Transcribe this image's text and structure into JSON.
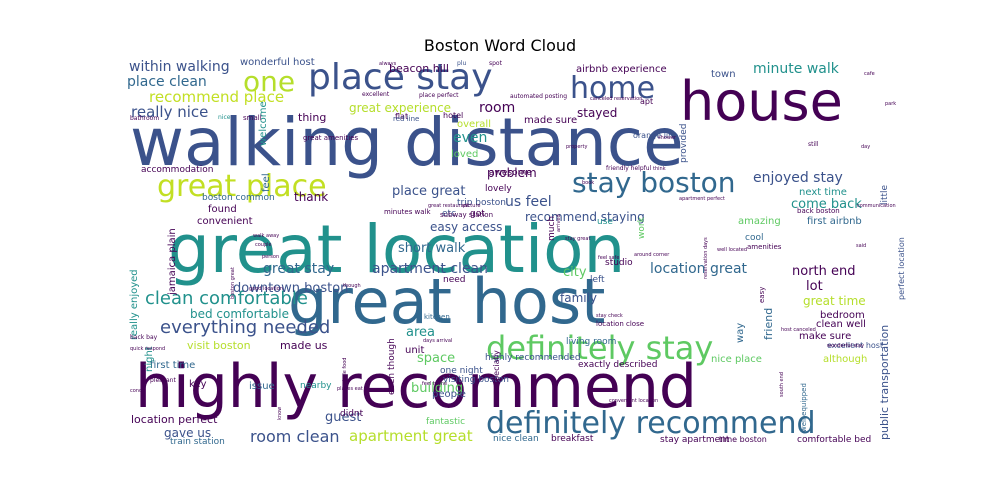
{
  "title": "Boston Word Cloud",
  "palette": "viridis",
  "words": [
    {
      "text": "walking distance",
      "weight": 100,
      "color": "#3b528b"
    },
    {
      "text": "great location",
      "weight": 97,
      "color": "#21918c"
    },
    {
      "text": "great host",
      "weight": 92,
      "color": "#31688e"
    },
    {
      "text": "highly recommend",
      "weight": 90,
      "color": "#440154"
    },
    {
      "text": "house",
      "weight": 70,
      "color": "#440154"
    },
    {
      "text": "place stay",
      "weight": 52,
      "color": "#3b528b"
    },
    {
      "text": "definitely stay",
      "weight": 46,
      "color": "#5ec962"
    },
    {
      "text": "great place",
      "weight": 42,
      "color": "#c2df23"
    },
    {
      "text": "definitely recommend",
      "weight": 40,
      "color": "#31688e"
    },
    {
      "text": "home",
      "weight": 38,
      "color": "#3b528b"
    },
    {
      "text": "one",
      "weight": 34,
      "color": "#b5de2b"
    },
    {
      "text": "stay boston",
      "weight": 36,
      "color": "#31688e"
    },
    {
      "text": "everything needed",
      "weight": 24,
      "color": "#3b528b"
    },
    {
      "text": "clean comfortable",
      "weight": 22,
      "color": "#21918c"
    },
    {
      "text": "recommend place",
      "weight": 18,
      "color": "#c2df23"
    },
    {
      "text": "really nice",
      "weight": 17,
      "color": "#3b528b"
    },
    {
      "text": "within walking",
      "weight": 16,
      "color": "#3b528b"
    },
    {
      "text": "place clean",
      "weight": 16,
      "color": "#31688e"
    },
    {
      "text": "minute walk",
      "weight": 16,
      "color": "#21918c"
    },
    {
      "text": "room clean",
      "weight": 18,
      "color": "#3b528b"
    },
    {
      "text": "apartment great",
      "weight": 16,
      "color": "#b5de2b"
    },
    {
      "text": "great stay",
      "weight": 16,
      "color": "#31688e"
    },
    {
      "text": "apartment clean",
      "weight": 16,
      "color": "#3b528b"
    },
    {
      "text": "location great",
      "weight": 16,
      "color": "#31688e"
    },
    {
      "text": "enjoyed stay",
      "weight": 15,
      "color": "#3b528b"
    },
    {
      "text": "downtown boston",
      "weight": 15,
      "color": "#3b528b"
    },
    {
      "text": "short walk",
      "weight": 15,
      "color": "#31688e"
    },
    {
      "text": "us feel",
      "weight": 16,
      "color": "#3b528b"
    },
    {
      "text": "even",
      "weight": 16,
      "color": "#21918c"
    },
    {
      "text": "room",
      "weight": 16,
      "color": "#440154"
    },
    {
      "text": "great experience",
      "weight": 13,
      "color": "#b5de2b"
    },
    {
      "text": "recommend staying",
      "weight": 13,
      "color": "#3b528b"
    },
    {
      "text": "place great",
      "weight": 14,
      "color": "#3b528b"
    },
    {
      "text": "come back",
      "weight": 14,
      "color": "#21918c"
    },
    {
      "text": "north end",
      "weight": 14,
      "color": "#440154"
    },
    {
      "text": "great time",
      "weight": 13,
      "color": "#b5de2b"
    },
    {
      "text": "lot",
      "weight": 14,
      "color": "#440154"
    },
    {
      "text": "bed comfortable",
      "weight": 13,
      "color": "#21918c"
    },
    {
      "text": "visit boston",
      "weight": 12,
      "color": "#b5de2b"
    },
    {
      "text": "made us",
      "weight": 12,
      "color": "#440154"
    },
    {
      "text": "area",
      "weight": 14,
      "color": "#21918c"
    },
    {
      "text": "space",
      "weight": 14,
      "color": "#5ec962"
    },
    {
      "text": "guest",
      "weight": 14,
      "color": "#3b528b"
    },
    {
      "text": "building",
      "weight": 14,
      "color": "#5ec962"
    },
    {
      "text": "gave us",
      "weight": 13,
      "color": "#3b528b"
    },
    {
      "text": "location perfect",
      "weight": 11,
      "color": "#440154"
    },
    {
      "text": "first time",
      "weight": 10,
      "color": "#31688e"
    },
    {
      "text": "problem",
      "weight": 12,
      "color": "#440154"
    },
    {
      "text": "stayed",
      "weight": 12,
      "color": "#440154"
    },
    {
      "text": "city",
      "weight": 12,
      "color": "#5ec962"
    },
    {
      "text": "family",
      "weight": 11,
      "color": "#3b528b"
    },
    {
      "text": "easy access",
      "weight": 12,
      "color": "#3b528b"
    },
    {
      "text": "thank",
      "weight": 12,
      "color": "#440154"
    },
    {
      "text": "thing",
      "weight": 11,
      "color": "#440154"
    },
    {
      "text": "beacon hill",
      "weight": 10,
      "color": "#440154"
    },
    {
      "text": "airbnb experience",
      "weight": 9,
      "color": "#440154"
    },
    {
      "text": "wonderful host",
      "weight": 9,
      "color": "#3b528b"
    },
    {
      "text": "town",
      "weight": 10,
      "color": "#3b528b"
    },
    {
      "text": "next time",
      "weight": 11,
      "color": "#21918c"
    },
    {
      "text": "bedroom",
      "weight": 11,
      "color": "#440154"
    },
    {
      "text": "amazing",
      "weight": 10,
      "color": "#5ec962"
    },
    {
      "text": "convenient",
      "weight": 10,
      "color": "#440154"
    },
    {
      "text": "found",
      "weight": 10,
      "color": "#440154"
    },
    {
      "text": "boston common",
      "weight": 9,
      "color": "#31688e"
    },
    {
      "text": "accommodation",
      "weight": 9,
      "color": "#440154"
    },
    {
      "text": "welcome",
      "weight": 10,
      "color": "#21918c"
    },
    {
      "text": "feel",
      "weight": 10,
      "color": "#31688e"
    },
    {
      "text": "loved",
      "weight": 10,
      "color": "#5ec962"
    },
    {
      "text": "overall",
      "weight": 10,
      "color": "#b5de2b"
    },
    {
      "text": "made sure",
      "weight": 10,
      "color": "#440154"
    },
    {
      "text": "make sure",
      "weight": 10,
      "color": "#440154"
    },
    {
      "text": "first airbnb",
      "weight": 9,
      "color": "#31688e"
    },
    {
      "text": "clean well",
      "weight": 9,
      "color": "#440154"
    },
    {
      "text": "excellent host",
      "weight": 8,
      "color": "#3b528b"
    },
    {
      "text": "although",
      "weight": 9,
      "color": "#b5de2b"
    },
    {
      "text": "nice place",
      "weight": 9,
      "color": "#5ec962"
    },
    {
      "text": "exactly described",
      "weight": 9,
      "color": "#440154"
    },
    {
      "text": "highly recommended",
      "weight": 9,
      "color": "#3b528b"
    },
    {
      "text": "living room",
      "weight": 9,
      "color": "#31688e"
    },
    {
      "text": "one night",
      "weight": 9,
      "color": "#3b528b"
    },
    {
      "text": "people",
      "weight": 10,
      "color": "#3b528b"
    },
    {
      "text": "unit",
      "weight": 10,
      "color": "#440154"
    },
    {
      "text": "nearby",
      "weight": 9,
      "color": "#21918c"
    },
    {
      "text": "issue",
      "weight": 9,
      "color": "#31688e"
    },
    {
      "text": "key",
      "weight": 9,
      "color": "#440154"
    },
    {
      "text": "fantastic",
      "weight": 9,
      "color": "#5ec962"
    },
    {
      "text": "didnt",
      "weight": 9,
      "color": "#440154"
    },
    {
      "text": "train station",
      "weight": 8,
      "color": "#31688e"
    },
    {
      "text": "nice clean",
      "weight": 9,
      "color": "#31688e"
    },
    {
      "text": "breakfast",
      "weight": 9,
      "color": "#440154"
    },
    {
      "text": "stay apartment",
      "weight": 8,
      "color": "#440154"
    },
    {
      "text": "time boston",
      "weight": 8,
      "color": "#440154"
    },
    {
      "text": "comfortable bed",
      "weight": 8,
      "color": "#440154"
    },
    {
      "text": "public transportation",
      "weight": 11,
      "color": "#3b528b"
    },
    {
      "text": "perfect location",
      "weight": 8,
      "color": "#3b528b"
    },
    {
      "text": "friend",
      "weight": 10,
      "color": "#31688e"
    },
    {
      "text": "really enjoyed",
      "weight": 10,
      "color": "#21918c"
    },
    {
      "text": "night",
      "weight": 10,
      "color": "#21918c"
    },
    {
      "text": "jamaica plain",
      "weight": 9,
      "color": "#440154"
    },
    {
      "text": "awesome",
      "weight": 9,
      "color": "#440154"
    },
    {
      "text": "lovely",
      "weight": 9,
      "color": "#440154"
    },
    {
      "text": "got",
      "weight": 9,
      "color": "#440154"
    },
    {
      "text": "trip boston",
      "weight": 9,
      "color": "#3b528b"
    },
    {
      "text": "etc",
      "weight": 9,
      "color": "#3b528b"
    },
    {
      "text": "need",
      "weight": 10,
      "color": "#440154"
    },
    {
      "text": "way",
      "weight": 9,
      "color": "#31688e"
    },
    {
      "text": "visiting boston",
      "weight": 9,
      "color": "#3b528b"
    },
    {
      "text": "even though",
      "weight": 8,
      "color": "#440154"
    },
    {
      "text": "especially",
      "weight": 9,
      "color": "#440154"
    },
    {
      "text": "use",
      "weight": 9,
      "color": "#21918c"
    },
    {
      "text": "much",
      "weight": 9,
      "color": "#440154"
    },
    {
      "text": "left",
      "weight": 9,
      "color": "#3b528b"
    },
    {
      "text": "work",
      "weight": 9,
      "color": "#5ec962"
    },
    {
      "text": "provided",
      "weight": 9,
      "color": "#3b528b"
    },
    {
      "text": "little",
      "weight": 9,
      "color": "#3b528b"
    },
    {
      "text": "cool",
      "weight": 8,
      "color": "#31688e"
    },
    {
      "text": "studio",
      "weight": 8,
      "color": "#440154"
    },
    {
      "text": "hotel",
      "weight": 8,
      "color": "#440154"
    },
    {
      "text": "flat",
      "weight": 8,
      "color": "#440154"
    },
    {
      "text": "apt",
      "weight": 8,
      "color": "#440154"
    },
    {
      "text": "orange line",
      "weight": 7,
      "color": "#3b528b"
    },
    {
      "text": "red line",
      "weight": 7,
      "color": "#3b528b"
    },
    {
      "text": "subway station",
      "weight": 6,
      "color": "#440154"
    },
    {
      "text": "spot",
      "weight": 6,
      "color": "#440154"
    },
    {
      "text": "plu",
      "weight": 7,
      "color": "#3b528b"
    },
    {
      "text": "great amenities",
      "weight": 6,
      "color": "#440154"
    },
    {
      "text": "well equipped",
      "weight": 6,
      "color": "#31688e"
    },
    {
      "text": "kitchen",
      "weight": 7,
      "color": "#31688e"
    },
    {
      "text": "minutes walk",
      "weight": 7,
      "color": "#440154"
    },
    {
      "text": "easy",
      "weight": 7,
      "color": "#440154"
    },
    {
      "text": "back boston",
      "weight": 7,
      "color": "#440154"
    },
    {
      "text": "amenities",
      "weight": 7,
      "color": "#440154"
    },
    {
      "text": "location close",
      "weight": 7,
      "color": "#440154"
    },
    {
      "text": "small",
      "weight": 7,
      "color": "#440154"
    },
    {
      "text": "bathroom",
      "weight": 6,
      "color": "#440154"
    },
    {
      "text": "always",
      "weight": 5,
      "color": "#440154"
    },
    {
      "text": "excellent",
      "weight": 6,
      "color": "#440154"
    },
    {
      "text": "place perfect",
      "weight": 5,
      "color": "#440154"
    },
    {
      "text": "automated posting",
      "weight": 6,
      "color": "#440154"
    },
    {
      "text": "canceled reservation",
      "weight": 5,
      "color": "#440154"
    },
    {
      "text": "host canceled",
      "weight": 5,
      "color": "#440154"
    },
    {
      "text": "friendly helpful",
      "weight": 6,
      "color": "#440154"
    },
    {
      "text": "nice",
      "weight": 6,
      "color": "#21918c"
    },
    {
      "text": "feel safe",
      "weight": 5,
      "color": "#440154"
    },
    {
      "text": "still",
      "weight": 6,
      "color": "#440154"
    },
    {
      "text": "day",
      "weight": 5,
      "color": "#440154"
    },
    {
      "text": "park",
      "weight": 5,
      "color": "#440154"
    },
    {
      "text": "cafe",
      "weight": 5,
      "color": "#440154"
    },
    {
      "text": "shower",
      "weight": 5,
      "color": "#440154"
    },
    {
      "text": "think",
      "weight": 5,
      "color": "#440154"
    },
    {
      "text": "property",
      "weight": 5,
      "color": "#440154"
    },
    {
      "text": "walk away",
      "weight": 5,
      "color": "#440154"
    },
    {
      "text": "good location",
      "weight": 5,
      "color": "#440154"
    },
    {
      "text": "back bay",
      "weight": 6,
      "color": "#440154"
    },
    {
      "text": "pleasant",
      "weight": 6,
      "color": "#440154"
    },
    {
      "text": "quick respond",
      "weight": 5,
      "color": "#440154"
    },
    {
      "text": "wonderful stay",
      "weight": 5,
      "color": "#440154"
    },
    {
      "text": "condo",
      "weight": 5,
      "color": "#440154"
    },
    {
      "text": "couple",
      "weight": 5,
      "color": "#440154"
    },
    {
      "text": "person",
      "weight": 5,
      "color": "#440154"
    },
    {
      "text": "though",
      "weight": 5,
      "color": "#440154"
    },
    {
      "text": "boston great",
      "weight": 5,
      "color": "#440154"
    },
    {
      "text": "days arrival",
      "weight": 5,
      "color": "#440154"
    },
    {
      "text": "feel home",
      "weight": 5,
      "color": "#440154"
    },
    {
      "text": "whole food",
      "weight": 5,
      "color": "#440154"
    },
    {
      "text": "great restaurant",
      "weight": 5,
      "color": "#440154"
    },
    {
      "text": "stay check",
      "weight": 5,
      "color": "#440154"
    },
    {
      "text": "convenient location",
      "weight": 5,
      "color": "#440154"
    },
    {
      "text": "places eat",
      "weight": 5,
      "color": "#440154"
    },
    {
      "text": "know",
      "weight": 5,
      "color": "#440154"
    },
    {
      "text": "apartment perfect",
      "weight": 5,
      "color": "#440154"
    },
    {
      "text": "well located",
      "weight": 5,
      "color": "#440154"
    },
    {
      "text": "reservation days",
      "weight": 5,
      "color": "#440154"
    },
    {
      "text": "south end",
      "weight": 5,
      "color": "#440154"
    },
    {
      "text": "communication",
      "weight": 5,
      "color": "#440154"
    },
    {
      "text": "said",
      "weight": 5,
      "color": "#440154"
    },
    {
      "text": "book",
      "weight": 5,
      "color": "#440154"
    },
    {
      "text": "picture",
      "weight": 5,
      "color": "#440154"
    },
    {
      "text": "arrived",
      "weight": 5,
      "color": "#440154"
    },
    {
      "text": "stay great",
      "weight": 5,
      "color": "#440154"
    },
    {
      "text": "around corner",
      "weight": 5,
      "color": "#440154"
    },
    {
      "text": "love",
      "weight": 5,
      "color": "#440154"
    },
    {
      "text": "house clean",
      "weight": 5,
      "color": "#440154"
    }
  ]
}
